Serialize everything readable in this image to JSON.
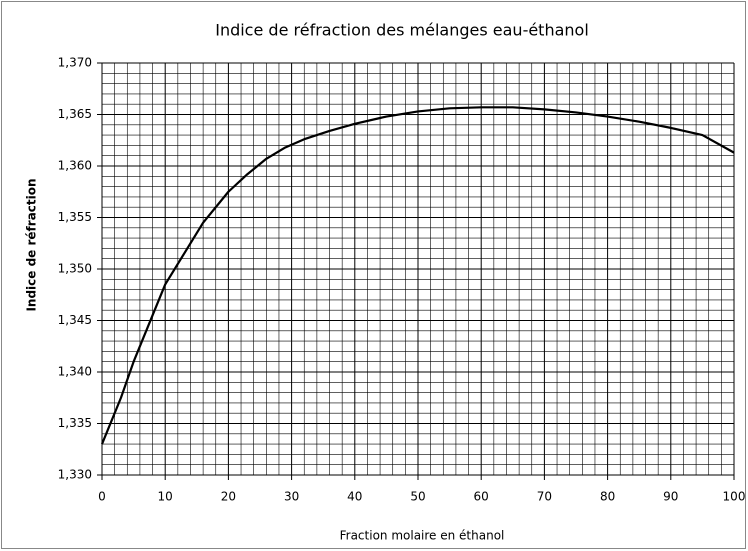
{
  "chart_data": {
    "type": "line",
    "title": "Indice de réfraction des mélanges eau-éthanol",
    "x_label": "Fraction molaire en éthanol",
    "y_label": "Indice de réfraction",
    "x": [
      0,
      3,
      5,
      8,
      10,
      13,
      16,
      20,
      23,
      26,
      29,
      32,
      36,
      40,
      45,
      50,
      55,
      60,
      65,
      70,
      75,
      80,
      85,
      90,
      95,
      100
    ],
    "values": [
      1.333,
      1.3375,
      1.341,
      1.3455,
      1.3485,
      1.3515,
      1.3545,
      1.3575,
      1.3592,
      1.3607,
      1.3618,
      1.3626,
      1.3634,
      1.3641,
      1.3648,
      1.3653,
      1.3656,
      1.3657,
      1.3657,
      1.3655,
      1.3652,
      1.3648,
      1.3643,
      1.3637,
      1.363,
      1.3613
    ],
    "color": "#000000",
    "xlim": [
      0,
      100
    ],
    "xticks": [
      0,
      10,
      20,
      30,
      40,
      50,
      60,
      70,
      80,
      90,
      100
    ],
    "ylim": [
      1.33,
      1.37
    ],
    "yticks": [
      {
        "value": 1.33,
        "label": "1,330"
      },
      {
        "value": 1.335,
        "label": "1,335"
      },
      {
        "value": 1.34,
        "label": "1,340"
      },
      {
        "value": 1.345,
        "label": "1,345"
      },
      {
        "value": 1.35,
        "label": "1,350"
      },
      {
        "value": 1.355,
        "label": "1,355"
      },
      {
        "value": 1.36,
        "label": "1,360"
      },
      {
        "value": 1.365,
        "label": "1,365"
      },
      {
        "value": 1.37,
        "label": "1,370"
      }
    ],
    "grid": true,
    "minor_divisions": {
      "x": 5,
      "y": 5
    }
  }
}
